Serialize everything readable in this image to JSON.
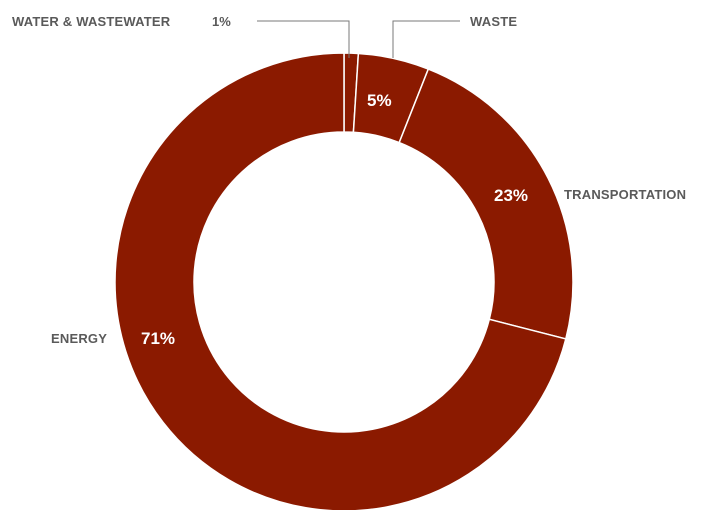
{
  "chart_data": {
    "type": "pie",
    "variant": "donut",
    "slices": [
      {
        "label": "WATER & WASTEWATER",
        "value": 1,
        "value_label": "1%"
      },
      {
        "label": "WASTE",
        "value": 5,
        "value_label": "5%"
      },
      {
        "label": "TRANSPORTATION",
        "value": 23,
        "value_label": "23%"
      },
      {
        "label": "ENERGY",
        "value": 71,
        "value_label": "71%"
      }
    ],
    "colors": {
      "slice": "#8b1a00",
      "separator": "#ffffff",
      "label": "#5a5a5a",
      "value_inside": "#ffffff"
    },
    "legend": "none"
  }
}
